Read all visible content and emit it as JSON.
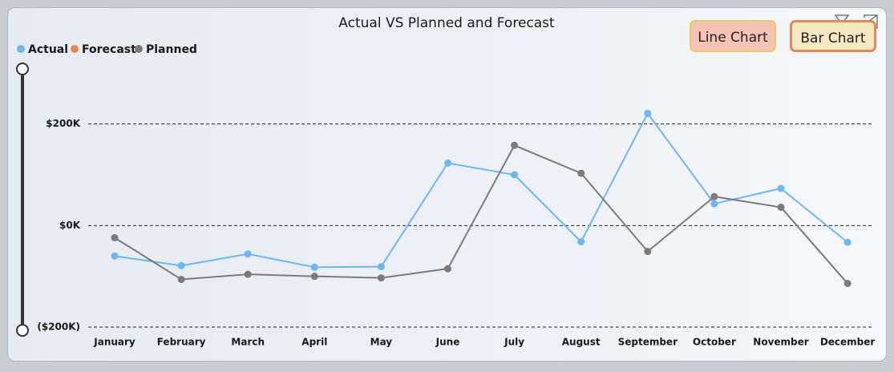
{
  "chart_data": {
    "type": "line",
    "title": "Actual VS Planned and Forecast",
    "categories": [
      "January",
      "February",
      "March",
      "April",
      "May",
      "June",
      "July",
      "August",
      "September",
      "October",
      "November",
      "December"
    ],
    "series": [
      {
        "name": "Actual",
        "color": "#6cb8f3",
        "values": [
          -60000,
          -79000,
          -56000,
          -82000,
          -81000,
          123000,
          100000,
          -32000,
          221000,
          43000,
          73000,
          -33000
        ]
      },
      {
        "name": "Forecast",
        "color": "#e8875a",
        "values": [
          null,
          null,
          null,
          null,
          null,
          null,
          null,
          null,
          null,
          null,
          null,
          null
        ]
      },
      {
        "name": "Planned",
        "color": "#7f7a7a",
        "values": [
          -24000,
          -106000,
          -96000,
          -100000,
          -103000,
          -85000,
          158000,
          103000,
          -51000,
          57000,
          36000,
          -114000
        ]
      }
    ],
    "ylim": [
      -200000,
      310000
    ],
    "yticks": [
      {
        "value": -200000,
        "label": "($200K)"
      },
      {
        "value": 0,
        "label": "$0K"
      },
      {
        "value": 200000,
        "label": "$200K"
      }
    ],
    "grid": true
  },
  "buttons": [
    "Line Chart",
    "Bar Chart"
  ]
}
